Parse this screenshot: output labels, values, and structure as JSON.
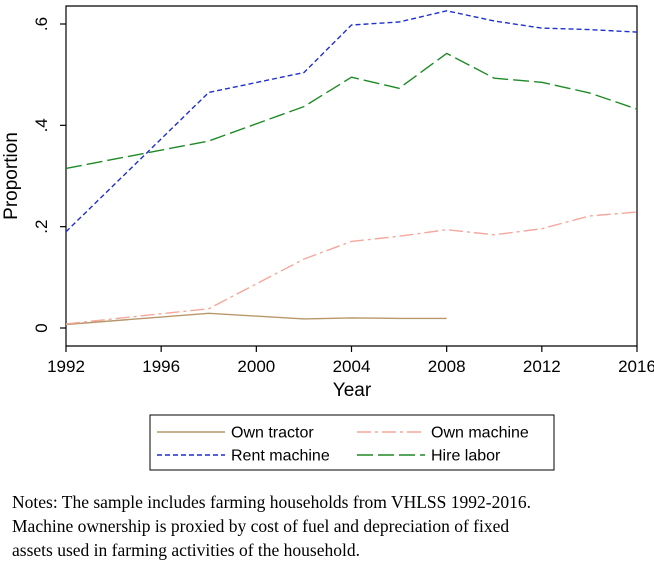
{
  "chart_data": {
    "type": "line",
    "xlabel": "Year",
    "ylabel": "Proportion",
    "xlim": [
      1992,
      2016
    ],
    "ylim": [
      0,
      0.6
    ],
    "xticks": [
      1992,
      1996,
      2000,
      2004,
      2008,
      2012,
      2016
    ],
    "yticks": [
      0,
      0.2,
      0.4,
      0.6
    ],
    "ytick_labels": [
      "0",
      ".2",
      ".4",
      ".6"
    ],
    "grid": false,
    "legend_position": "bottom",
    "series": [
      {
        "name": "Own tractor",
        "color": "#B8986A",
        "dash": "solid",
        "x": [
          1992,
          1998,
          2002,
          2004,
          2006,
          2008
        ],
        "y": [
          0.007,
          0.029,
          0.018,
          0.02,
          0.019,
          0.019
        ]
      },
      {
        "name": "Own machine",
        "color": "#F4A79D",
        "dash": "longdash-dot",
        "x": [
          1992,
          1998,
          2002,
          2004,
          2006,
          2008,
          2010,
          2012,
          2014,
          2016
        ],
        "y": [
          0.008,
          0.038,
          0.136,
          0.171,
          0.181,
          0.194,
          0.184,
          0.196,
          0.221,
          0.229
        ]
      },
      {
        "name": "Rent machine",
        "color": "#1F2FD0",
        "dash": "shortdash",
        "x": [
          1992,
          1998,
          2002,
          2004,
          2006,
          2008,
          2010,
          2012,
          2014,
          2016
        ],
        "y": [
          0.19,
          0.465,
          0.504,
          0.598,
          0.604,
          0.626,
          0.606,
          0.592,
          0.589,
          0.584
        ]
      },
      {
        "name": "Hire labor",
        "color": "#1E8A26",
        "dash": "longdash",
        "x": [
          1992,
          1998,
          2002,
          2004,
          2006,
          2008,
          2010,
          2012,
          2014,
          2016
        ],
        "y": [
          0.315,
          0.369,
          0.437,
          0.495,
          0.473,
          0.542,
          0.493,
          0.485,
          0.464,
          0.432
        ]
      }
    ]
  },
  "notes": [
    "Notes: The sample includes farming households from VHLSS 1992-2016.",
    "Machine ownership is proxied by cost of fuel and depreciation of fixed",
    "assets used in farming activities of the household."
  ]
}
